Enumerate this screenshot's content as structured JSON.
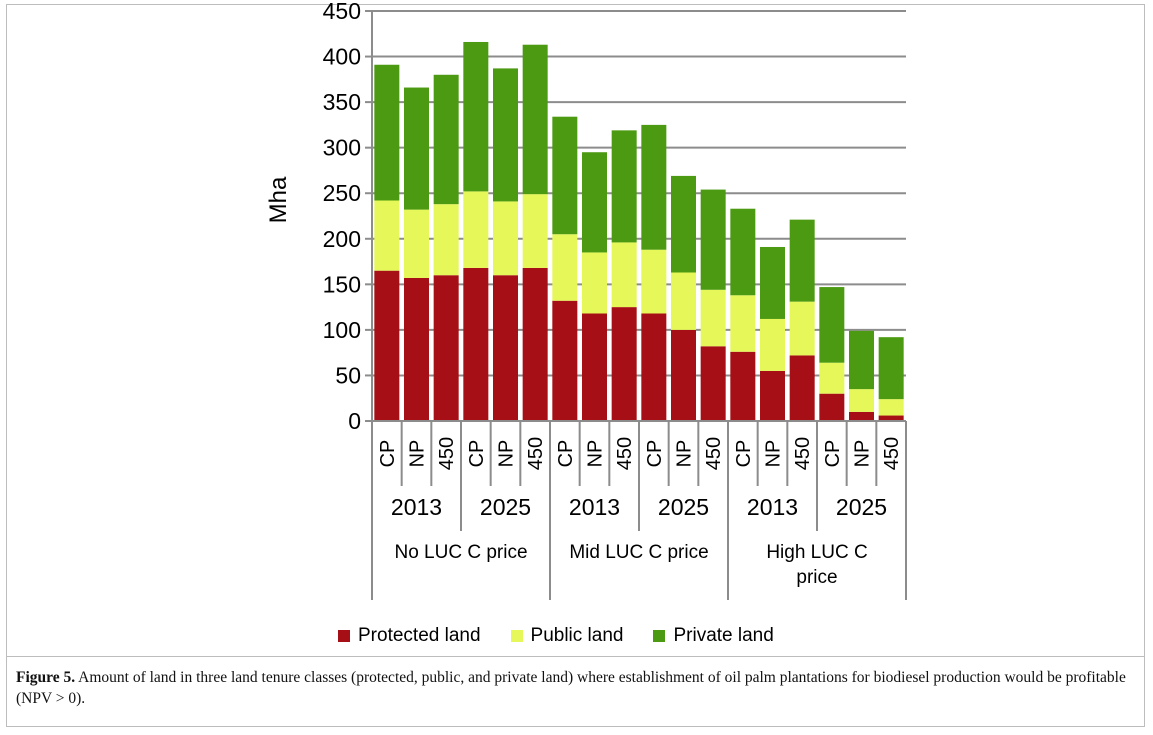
{
  "chart_data": {
    "type": "bar",
    "stacked": true,
    "ylabel": "Mha",
    "ylim": [
      0,
      450
    ],
    "yticks": [
      0,
      50,
      100,
      150,
      200,
      250,
      300,
      350,
      400,
      450
    ],
    "grid": true,
    "legend_position": "bottom",
    "categories": [
      {
        "scenario": "CP",
        "year": "2013",
        "price": "No LUC C price"
      },
      {
        "scenario": "NP",
        "year": "2013",
        "price": "No LUC C price"
      },
      {
        "scenario": "450",
        "year": "2013",
        "price": "No LUC C price"
      },
      {
        "scenario": "CP",
        "year": "2025",
        "price": "No LUC C price"
      },
      {
        "scenario": "NP",
        "year": "2025",
        "price": "No LUC C price"
      },
      {
        "scenario": "450",
        "year": "2025",
        "price": "No LUC C price"
      },
      {
        "scenario": "CP",
        "year": "2013",
        "price": "Mid LUC C price"
      },
      {
        "scenario": "NP",
        "year": "2013",
        "price": "Mid LUC C price"
      },
      {
        "scenario": "450",
        "year": "2013",
        "price": "Mid LUC C price"
      },
      {
        "scenario": "CP",
        "year": "2025",
        "price": "Mid LUC C price"
      },
      {
        "scenario": "NP",
        "year": "2025",
        "price": "Mid LUC C price"
      },
      {
        "scenario": "450",
        "year": "2025",
        "price": "Mid LUC C price"
      },
      {
        "scenario": "CP",
        "year": "2013",
        "price": "High LUC C price"
      },
      {
        "scenario": "NP",
        "year": "2013",
        "price": "High LUC C price"
      },
      {
        "scenario": "450",
        "year": "2013",
        "price": "High LUC C price"
      },
      {
        "scenario": "CP",
        "year": "2025",
        "price": "High LUC C price"
      },
      {
        "scenario": "NP",
        "year": "2025",
        "price": "High LUC C price"
      },
      {
        "scenario": "450",
        "year": "2025",
        "price": "High LUC C price"
      }
    ],
    "year_groups": [
      "2013",
      "2025",
      "2013",
      "2025",
      "2013",
      "2025"
    ],
    "price_groups": [
      {
        "label": "No LUC C price",
        "lines": [
          "No LUC C price"
        ]
      },
      {
        "label": "Mid LUC C price",
        "lines": [
          "Mid LUC C price"
        ]
      },
      {
        "label": "High LUC C price",
        "lines": [
          "High LUC C",
          "price"
        ]
      }
    ],
    "series": [
      {
        "name": "Protected land",
        "color": "#a50f15",
        "values": [
          165,
          157,
          160,
          168,
          160,
          168,
          132,
          118,
          125,
          118,
          100,
          82,
          76,
          55,
          72,
          30,
          10,
          6
        ]
      },
      {
        "name": "Public land",
        "color": "#e6f75a",
        "values": [
          77,
          75,
          78,
          84,
          81,
          81,
          73,
          67,
          71,
          70,
          63,
          62,
          62,
          57,
          59,
          34,
          25,
          18
        ]
      },
      {
        "name": "Private land",
        "color": "#4c9a12",
        "values": [
          149,
          134,
          142,
          164,
          146,
          164,
          129,
          110,
          123,
          137,
          106,
          110,
          95,
          79,
          90,
          83,
          64,
          68
        ]
      }
    ]
  },
  "caption": {
    "label": "Figure 5.",
    "text": "Amount of land in three land tenure classes (protected, public, and private land) where establishment of oil palm plantations for biodiesel production would be profitable (NPV > 0)."
  }
}
